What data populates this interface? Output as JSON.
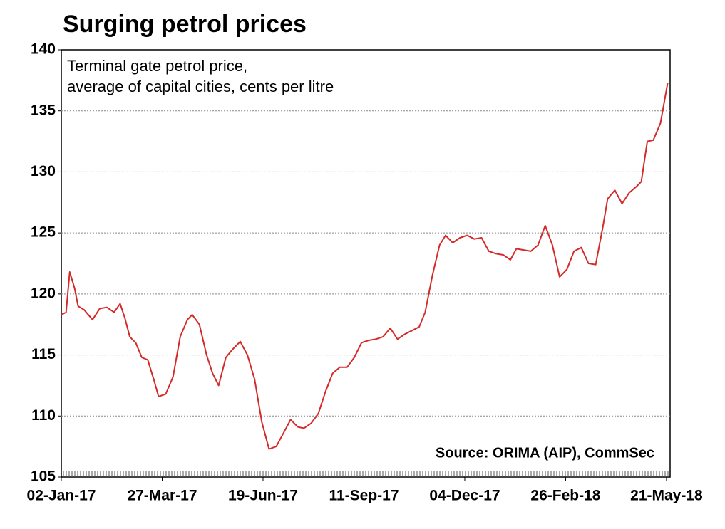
{
  "chart_data": {
    "type": "line",
    "title": "Surging petrol prices",
    "subtitle": [
      "Terminal gate petrol price,",
      "average of capital cities, cents per litre"
    ],
    "source": "Source: ORIMA (AIP), CommSec",
    "x": [
      "2017-01-02",
      "2017-01-06",
      "2017-01-09",
      "2017-01-13",
      "2017-01-16",
      "2017-01-21",
      "2017-01-28",
      "2017-02-03",
      "2017-02-09",
      "2017-02-15",
      "2017-02-20",
      "2017-02-24",
      "2017-02-28",
      "2017-03-05",
      "2017-03-10",
      "2017-03-15",
      "2017-03-20",
      "2017-03-24",
      "2017-03-30",
      "2017-04-05",
      "2017-04-11",
      "2017-04-17",
      "2017-04-21",
      "2017-04-27",
      "2017-05-03",
      "2017-05-08",
      "2017-05-13",
      "2017-05-19",
      "2017-05-25",
      "2017-05-31",
      "2017-06-06",
      "2017-06-12",
      "2017-06-18",
      "2017-06-24",
      "2017-06-30",
      "2017-07-06",
      "2017-07-12",
      "2017-07-18",
      "2017-07-23",
      "2017-07-29",
      "2017-08-04",
      "2017-08-10",
      "2017-08-16",
      "2017-08-22",
      "2017-08-28",
      "2017-09-03",
      "2017-09-09",
      "2017-09-15",
      "2017-09-21",
      "2017-09-27",
      "2017-10-03",
      "2017-10-09",
      "2017-10-15",
      "2017-10-21",
      "2017-10-27",
      "2017-11-01",
      "2017-11-07",
      "2017-11-13",
      "2017-11-18",
      "2017-11-24",
      "2017-11-30",
      "2017-12-06",
      "2017-12-12",
      "2017-12-18",
      "2017-12-24",
      "2017-12-30",
      "2018-01-05",
      "2018-01-11",
      "2018-01-16",
      "2018-01-22",
      "2018-01-28",
      "2018-02-03",
      "2018-02-09",
      "2018-02-15",
      "2018-02-21",
      "2018-02-27",
      "2018-03-05",
      "2018-03-11",
      "2018-03-17",
      "2018-03-23",
      "2018-03-29",
      "2018-04-02",
      "2018-04-08",
      "2018-04-14",
      "2018-04-20",
      "2018-04-26",
      "2018-04-30",
      "2018-05-05",
      "2018-05-10",
      "2018-05-16",
      "2018-05-22"
    ],
    "series": [
      {
        "name": "Terminal gate petrol price",
        "color": "#d42a2a",
        "values": [
          118.3,
          118.5,
          121.8,
          120.5,
          119,
          118.7,
          117.9,
          118.8,
          118.9,
          118.5,
          119.2,
          118,
          116.5,
          116,
          114.8,
          114.6,
          113,
          111.6,
          111.8,
          113.2,
          116.5,
          117.9,
          118.3,
          117.5,
          115,
          113.5,
          112.5,
          114.8,
          115.5,
          116.1,
          115,
          113,
          109.5,
          107.3,
          107.5,
          108.6,
          109.7,
          109.1,
          109,
          109.4,
          110.2,
          112,
          113.5,
          114,
          114,
          114.8,
          116,
          116.2,
          116.3,
          116.5,
          117.2,
          116.3,
          116.7,
          117,
          117.3,
          118.5,
          121.5,
          124,
          124.8,
          124.2,
          124.6,
          124.8,
          124.5,
          124.6,
          123.5,
          123.3,
          123.2,
          122.8,
          123.7,
          123.6,
          123.5,
          124,
          125.6,
          124,
          121.4,
          122,
          123.5,
          123.8,
          122.5,
          122.4,
          125.5,
          127.8,
          128.5,
          127.4,
          128.3,
          128.8,
          129.2,
          132.5,
          132.6,
          134,
          137.3
        ]
      }
    ],
    "xlim": [
      "2017-01-02",
      "2018-05-24"
    ],
    "xticks": [
      {
        "value": "2017-01-02",
        "label": "02-Jan-17"
      },
      {
        "value": "2017-03-27",
        "label": "27-Mar-17"
      },
      {
        "value": "2017-06-19",
        "label": "19-Jun-17"
      },
      {
        "value": "2017-09-11",
        "label": "11-Sep-17"
      },
      {
        "value": "2017-12-04",
        "label": "04-Dec-17"
      },
      {
        "value": "2018-02-26",
        "label": "26-Feb-18"
      },
      {
        "value": "2018-05-21",
        "label": "21-May-18"
      }
    ],
    "ylim": [
      105,
      140
    ],
    "yticks": [
      105,
      110,
      115,
      120,
      125,
      130,
      135,
      140
    ],
    "grid": true
  }
}
